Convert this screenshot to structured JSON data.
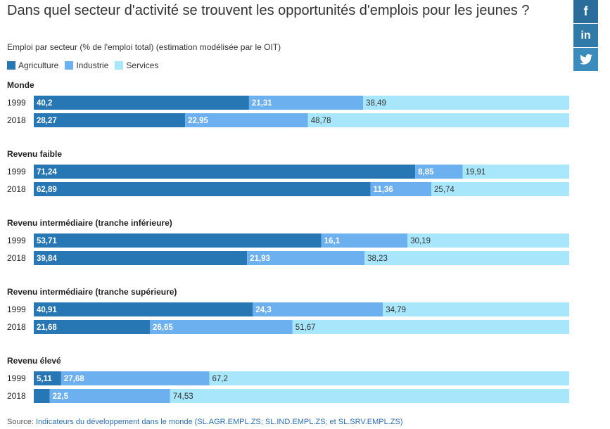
{
  "title": "Dans quel secteur d'activité se trouvent les opportunités d'emplois pour les jeunes ?",
  "subtitle": "Emploi par secteur (% de l'emploi total) (estimation modélisée par le OIT)",
  "legend": [
    {
      "label": "Agriculture",
      "color": "#2677b3"
    },
    {
      "label": "Industrie",
      "color": "#6db0ef"
    },
    {
      "label": "Services",
      "color": "#a8e6fb"
    }
  ],
  "social": {
    "facebook": "f",
    "linkedin": "in",
    "twitter_icon": "twitter-icon"
  },
  "source": {
    "prefix": "Source: ",
    "link": "Indicateurs du développement dans le monde (SL.AGR.EMPL.ZS; SL.IND.EMPL.ZS; et SL.SRV.EMPL.ZS)"
  },
  "chart_data": {
    "type": "bar",
    "orientation": "horizontal",
    "stacked": true,
    "xlim": [
      0,
      100
    ],
    "series": [
      {
        "name": "Agriculture",
        "color": "#2677b3"
      },
      {
        "name": "Industrie",
        "color": "#6db0ef"
      },
      {
        "name": "Services",
        "color": "#a8e6fb"
      }
    ],
    "groups": [
      {
        "name": "Monde",
        "rows": [
          {
            "year": "1999",
            "values": [
              40.2,
              21.31,
              38.49
            ],
            "labels": [
              "40,2",
              "21,31",
              "38,49"
            ]
          },
          {
            "year": "2018",
            "values": [
              28.27,
              22.95,
              48.78
            ],
            "labels": [
              "28,27",
              "22,95",
              "48,78"
            ]
          }
        ]
      },
      {
        "name": "Revenu faible",
        "rows": [
          {
            "year": "1999",
            "values": [
              71.24,
              8.85,
              19.91
            ],
            "labels": [
              "71,24",
              "8,85",
              "19,91"
            ]
          },
          {
            "year": "2018",
            "values": [
              62.89,
              11.36,
              25.74
            ],
            "labels": [
              "62,89",
              "11,36",
              "25,74"
            ]
          }
        ]
      },
      {
        "name": "Revenu intermédiaire (tranche inférieure)",
        "rows": [
          {
            "year": "1999",
            "values": [
              53.71,
              16.1,
              30.19
            ],
            "labels": [
              "53,71",
              "16,1",
              "30,19"
            ]
          },
          {
            "year": "2018",
            "values": [
              39.84,
              21.93,
              38.23
            ],
            "labels": [
              "39,84",
              "21,93",
              "38,23"
            ]
          }
        ]
      },
      {
        "name": "Revenu intermédiaire (tranche supérieure)",
        "rows": [
          {
            "year": "1999",
            "values": [
              40.91,
              24.3,
              34.79
            ],
            "labels": [
              "40,91",
              "24,3",
              "34,79"
            ]
          },
          {
            "year": "2018",
            "values": [
              21.68,
              26.65,
              51.67
            ],
            "labels": [
              "21,68",
              "26,65",
              "51,67"
            ]
          }
        ]
      },
      {
        "name": "Revenu élevé",
        "rows": [
          {
            "year": "1999",
            "values": [
              5.11,
              27.68,
              67.2
            ],
            "labels": [
              "5,11",
              "27,68",
              "67,2"
            ]
          },
          {
            "year": "2018",
            "values": [
              2.97,
              22.5,
              74.53
            ],
            "labels": [
              "",
              "22,5",
              "74,53"
            ]
          }
        ]
      }
    ]
  }
}
